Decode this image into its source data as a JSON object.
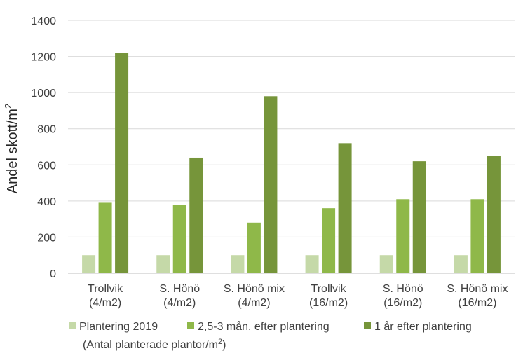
{
  "chart_data": {
    "type": "bar",
    "ylabel": "Andel skott/m",
    "ylabel_sup": "2",
    "xlabel": "(Antal planterade plantor/m",
    "xlabel_sup": "2",
    "xlabel_end": ")",
    "ylim": [
      0,
      1400
    ],
    "yticks": [
      "0",
      "200",
      "400",
      "600",
      "800",
      "1000",
      "1200",
      "1400"
    ],
    "grid": true,
    "legend_position": "bottom",
    "categories": [
      [
        "Trollvik",
        "(4/m2)"
      ],
      [
        "S. Hönö",
        "(4/m2)"
      ],
      [
        "S. Hönö mix",
        "(4/m2)"
      ],
      [
        "Trollvik",
        "(16/m2)"
      ],
      [
        "S. Hönö",
        "(16/m2)"
      ],
      [
        "S. Hönö mix",
        "(16/m2)"
      ]
    ],
    "series": [
      {
        "name": "Plantering 2019",
        "color": "#c5d9a8",
        "values": [
          100,
          100,
          100,
          100,
          100,
          100
        ]
      },
      {
        "name": "2,5-3 mån. efter plantering",
        "color": "#8fb849",
        "values": [
          390,
          380,
          280,
          360,
          410,
          410
        ]
      },
      {
        "name": "1 år efter plantering",
        "color": "#76953a",
        "values": [
          1220,
          640,
          980,
          720,
          620,
          650
        ]
      }
    ]
  }
}
